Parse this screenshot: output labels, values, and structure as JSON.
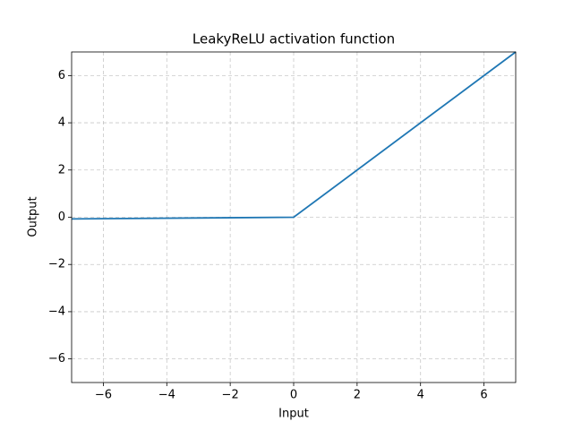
{
  "chart_data": {
    "type": "line",
    "title": "LeakyReLU activation function",
    "x_label": "Input",
    "y_label": "Output",
    "x": [
      -7,
      0,
      7
    ],
    "series": [
      {
        "name": "LeakyReLU",
        "color": "#1f77b4",
        "values": [
          -0.07,
          0,
          7
        ]
      }
    ],
    "xlim": [
      -7,
      7
    ],
    "ylim": [
      -7,
      7
    ],
    "xticks": [
      {
        "value": -6,
        "label": "−6"
      },
      {
        "value": -4,
        "label": "−4"
      },
      {
        "value": -2,
        "label": "−2"
      },
      0,
      2,
      4,
      6
    ],
    "yticks": [
      {
        "value": -6,
        "label": "−6"
      },
      {
        "value": -4,
        "label": "−4"
      },
      {
        "value": -2,
        "label": "−2"
      },
      0,
      2,
      4,
      6
    ],
    "grid": true
  }
}
